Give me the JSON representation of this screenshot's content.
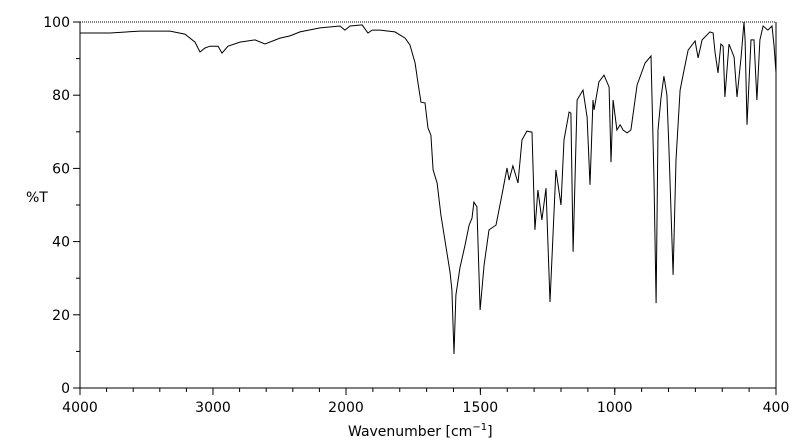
{
  "chart_data": {
    "type": "line",
    "title": "",
    "xlabel": "Wavenumber [cm",
    "xlabel_sup": "−1",
    "xlabel_end": "]",
    "ylabel": "%T",
    "xlim": [
      4000,
      400
    ],
    "ylim": [
      0,
      100
    ],
    "x_tick_labels": [
      "4000",
      "3000",
      "2000",
      "1500",
      "1000",
      "400"
    ],
    "x_ticks": [
      4000,
      3000,
      2000,
      1500,
      1000,
      400
    ],
    "y_tick_labels": [
      "0",
      "20",
      "40",
      "60",
      "80",
      "100"
    ],
    "y_ticks": [
      0,
      20,
      40,
      60,
      80,
      100
    ],
    "grid": false,
    "series": [
      {
        "name": "spectrum",
        "color": "#000000",
        "x": [
          4000,
          3774,
          3549,
          3323,
          3211,
          3135,
          3098,
          3060,
          3023,
          2962,
          2932,
          2887,
          2797,
          2684,
          2609,
          2496,
          2421,
          2346,
          2195,
          2045,
          2008,
          1985,
          1940,
          1918,
          1903,
          1873,
          1818,
          1780,
          1762,
          1743,
          1732,
          1721,
          1706,
          1695,
          1684,
          1676,
          1661,
          1647,
          1632,
          1613,
          1606,
          1598,
          1591,
          1576,
          1557,
          1542,
          1531,
          1524,
          1513,
          1501,
          1486,
          1468,
          1442,
          1420,
          1401,
          1393,
          1379,
          1360,
          1345,
          1327,
          1308,
          1297,
          1286,
          1271,
          1256,
          1241,
          1219,
          1200,
          1189,
          1170,
          1163,
          1155,
          1140,
          1118,
          1103,
          1092,
          1081,
          1077,
          1059,
          1040,
          1021,
          1014,
          1006,
          992,
          980,
          969,
          954,
          940,
          917,
          887,
          865,
          854,
          846,
          839,
          828,
          817,
          806,
          798,
          783,
          772,
          757,
          742,
          727,
          701,
          690,
          675,
          646,
          634,
          627,
          616,
          605,
          597,
          590,
          575,
          556,
          545,
          530,
          519,
          515,
          508,
          493,
          482,
          471,
          460,
          448,
          430,
          415,
          407,
          400
        ],
        "y": [
          97.0,
          97.0,
          97.5,
          97.5,
          96.7,
          94.5,
          91.8,
          92.9,
          93.4,
          93.4,
          91.5,
          93.4,
          94.5,
          95.1,
          94.0,
          95.6,
          96.2,
          97.3,
          98.4,
          98.9,
          97.8,
          98.9,
          99.2,
          97.0,
          97.8,
          97.8,
          97.3,
          95.6,
          93.7,
          88.8,
          83.3,
          78.1,
          77.9,
          71.0,
          69.1,
          59.6,
          56.0,
          47.3,
          40.4,
          31.7,
          26.8,
          9.3,
          25.4,
          32.8,
          39.1,
          44.5,
          46.4,
          50.8,
          49.5,
          21.3,
          33.6,
          43.2,
          44.5,
          52.7,
          60.1,
          56.8,
          60.7,
          56.0,
          67.8,
          70.2,
          69.9,
          43.2,
          54.1,
          45.9,
          54.6,
          23.5,
          59.6,
          50.0,
          67.8,
          75.4,
          75.1,
          37.2,
          78.7,
          81.4,
          74.0,
          55.5,
          78.7,
          76.0,
          83.6,
          85.5,
          82.2,
          61.7,
          78.7,
          70.5,
          71.9,
          70.5,
          69.7,
          70.5,
          82.8,
          88.8,
          90.7,
          56.8,
          23.2,
          70.5,
          79.2,
          85.2,
          80.1,
          65.0,
          30.9,
          62.3,
          81.4,
          86.9,
          92.3,
          94.8,
          90.2,
          95.1,
          97.3,
          97.0,
          91.8,
          86.1,
          94.0,
          93.4,
          79.5,
          94.0,
          90.4,
          79.5,
          90.4,
          100,
          95.1,
          71.9,
          95.1,
          95.1,
          78.7,
          95.1,
          98.9,
          97.8,
          98.9,
          93.4,
          86.1
        ]
      }
    ]
  }
}
